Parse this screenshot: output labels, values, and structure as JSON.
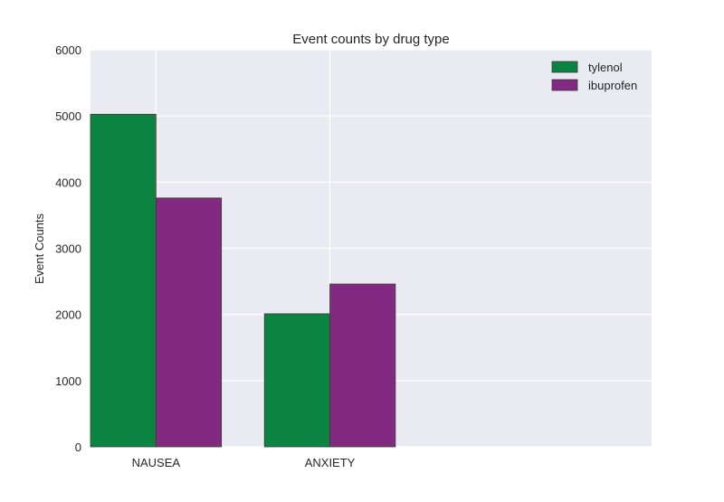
{
  "chart_data": {
    "type": "bar",
    "title": "Event counts by drug type",
    "xlabel": "",
    "ylabel": "Event Counts",
    "categories": [
      "NAUSEA",
      "ANXIETY"
    ],
    "series": [
      {
        "name": "tylenol",
        "values": [
          5025,
          2010
        ],
        "color": "#0b8442"
      },
      {
        "name": "ibuprofen",
        "values": [
          3760,
          2460
        ],
        "color": "#822a82"
      }
    ],
    "ylim": [
      0,
      6000
    ],
    "yticks": [
      "0",
      "1000",
      "2000",
      "3000",
      "4000",
      "5000",
      "6000"
    ],
    "grid": true,
    "legend_position": "top-right",
    "plot_background": "#eaeaf2",
    "grid_color": "#ffffff",
    "bar_edge_color": "#3a3a3a"
  }
}
